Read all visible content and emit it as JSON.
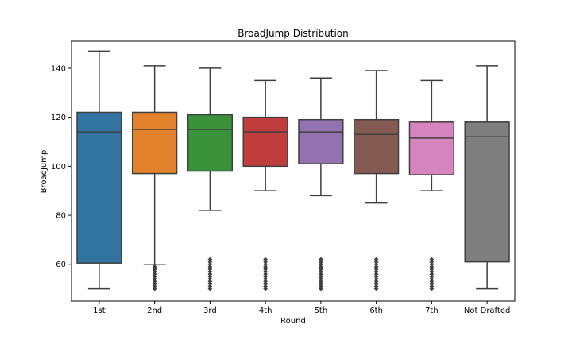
{
  "chart_data": {
    "type": "box",
    "title": "BroadJump Distribution",
    "xlabel": "Round",
    "ylabel": "BroadJump",
    "ylim": [
      45,
      151
    ],
    "yticks": [
      60,
      80,
      100,
      120,
      140
    ],
    "categories": [
      "1st",
      "2nd",
      "3rd",
      "4th",
      "5th",
      "6th",
      "7th",
      "Not Drafted"
    ],
    "grid": false,
    "boxes": [
      {
        "category": "1st",
        "whisker_low": 50,
        "q1": 60.5,
        "median": 114,
        "q3": 122,
        "whisker_high": 147,
        "outliers": [],
        "color": "#3274a1"
      },
      {
        "category": "2nd",
        "whisker_low": 60,
        "q1": 97,
        "median": 115,
        "q3": 122,
        "whisker_high": 141,
        "outliers": [
          59,
          58,
          57,
          56,
          55,
          54,
          53,
          52,
          51,
          50
        ],
        "color": "#e1812c"
      },
      {
        "category": "3rd",
        "whisker_low": 82,
        "q1": 98,
        "median": 115,
        "q3": 121,
        "whisker_high": 140,
        "outliers": [
          62,
          61,
          60,
          59,
          58,
          57,
          56,
          55,
          54,
          53,
          52,
          51,
          50
        ],
        "color": "#3a923a"
      },
      {
        "category": "4th",
        "whisker_low": 90,
        "q1": 100,
        "median": 114,
        "q3": 120,
        "whisker_high": 135,
        "outliers": [
          62,
          61,
          60,
          59,
          58,
          57,
          56,
          55,
          54,
          53,
          52,
          51,
          50
        ],
        "color": "#c03d3e"
      },
      {
        "category": "5th",
        "whisker_low": 88,
        "q1": 101,
        "median": 114,
        "q3": 119,
        "whisker_high": 136,
        "outliers": [
          62,
          61,
          60,
          59,
          58,
          57,
          56,
          55,
          54,
          53,
          52,
          51,
          50
        ],
        "color": "#9372b2"
      },
      {
        "category": "6th",
        "whisker_low": 85,
        "q1": 97,
        "median": 113,
        "q3": 119,
        "whisker_high": 139,
        "outliers": [
          62,
          61,
          60,
          59,
          58,
          57,
          56,
          55,
          54,
          53,
          52,
          51,
          50
        ],
        "color": "#845b53"
      },
      {
        "category": "7th",
        "whisker_low": 90,
        "q1": 96.5,
        "median": 111.5,
        "q3": 118,
        "whisker_high": 135,
        "outliers": [
          62,
          61,
          60,
          59,
          58,
          57,
          56,
          55,
          54,
          53,
          52,
          51,
          50
        ],
        "color": "#d684bd"
      },
      {
        "category": "Not Drafted",
        "whisker_low": 50,
        "q1": 61,
        "median": 112,
        "q3": 118,
        "whisker_high": 141,
        "outliers": [],
        "color": "#7f7f7f"
      }
    ]
  }
}
